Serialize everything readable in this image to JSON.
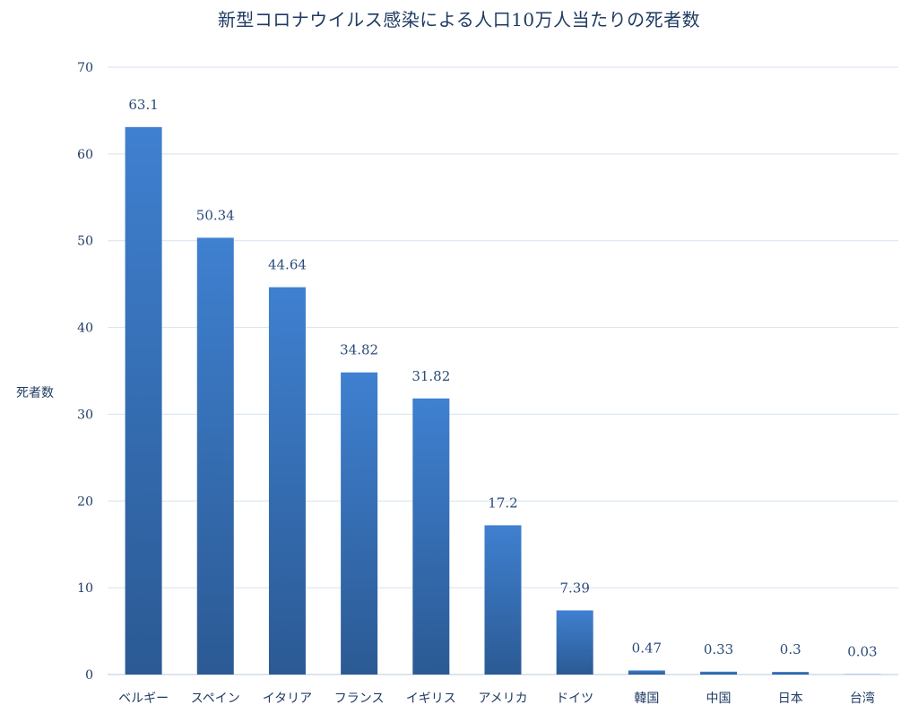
{
  "chart_data": {
    "type": "bar",
    "title": "新型コロナウイルス感染による人口10万人当たりの死者数",
    "ylabel": "死者数",
    "xlabel": "",
    "categories": [
      "ベルギー",
      "スペイン",
      "イタリア",
      "フランス",
      "イギリス",
      "アメリカ",
      "ドイツ",
      "韓国",
      "中国",
      "日本",
      "台湾"
    ],
    "values": [
      63.1,
      50.34,
      44.64,
      34.82,
      31.82,
      17.2,
      7.39,
      0.47,
      0.33,
      0.3,
      0.03
    ],
    "data_labels": [
      "63.1",
      "50.34",
      "44.64",
      "34.82",
      "31.82",
      "17.2",
      "7.39",
      "0.47",
      "0.33",
      "0.3",
      "0.03"
    ],
    "ylim": [
      0,
      70
    ],
    "yticks": [
      "0",
      "10",
      "20",
      "30",
      "40",
      "50",
      "60",
      "70"
    ],
    "grid": true,
    "legend": "none",
    "colors": {
      "bar_top": "#3f80d0",
      "bar_bottom": "#2b5a94",
      "grid": "#d6e2ef",
      "text": "#1f3b63"
    }
  }
}
